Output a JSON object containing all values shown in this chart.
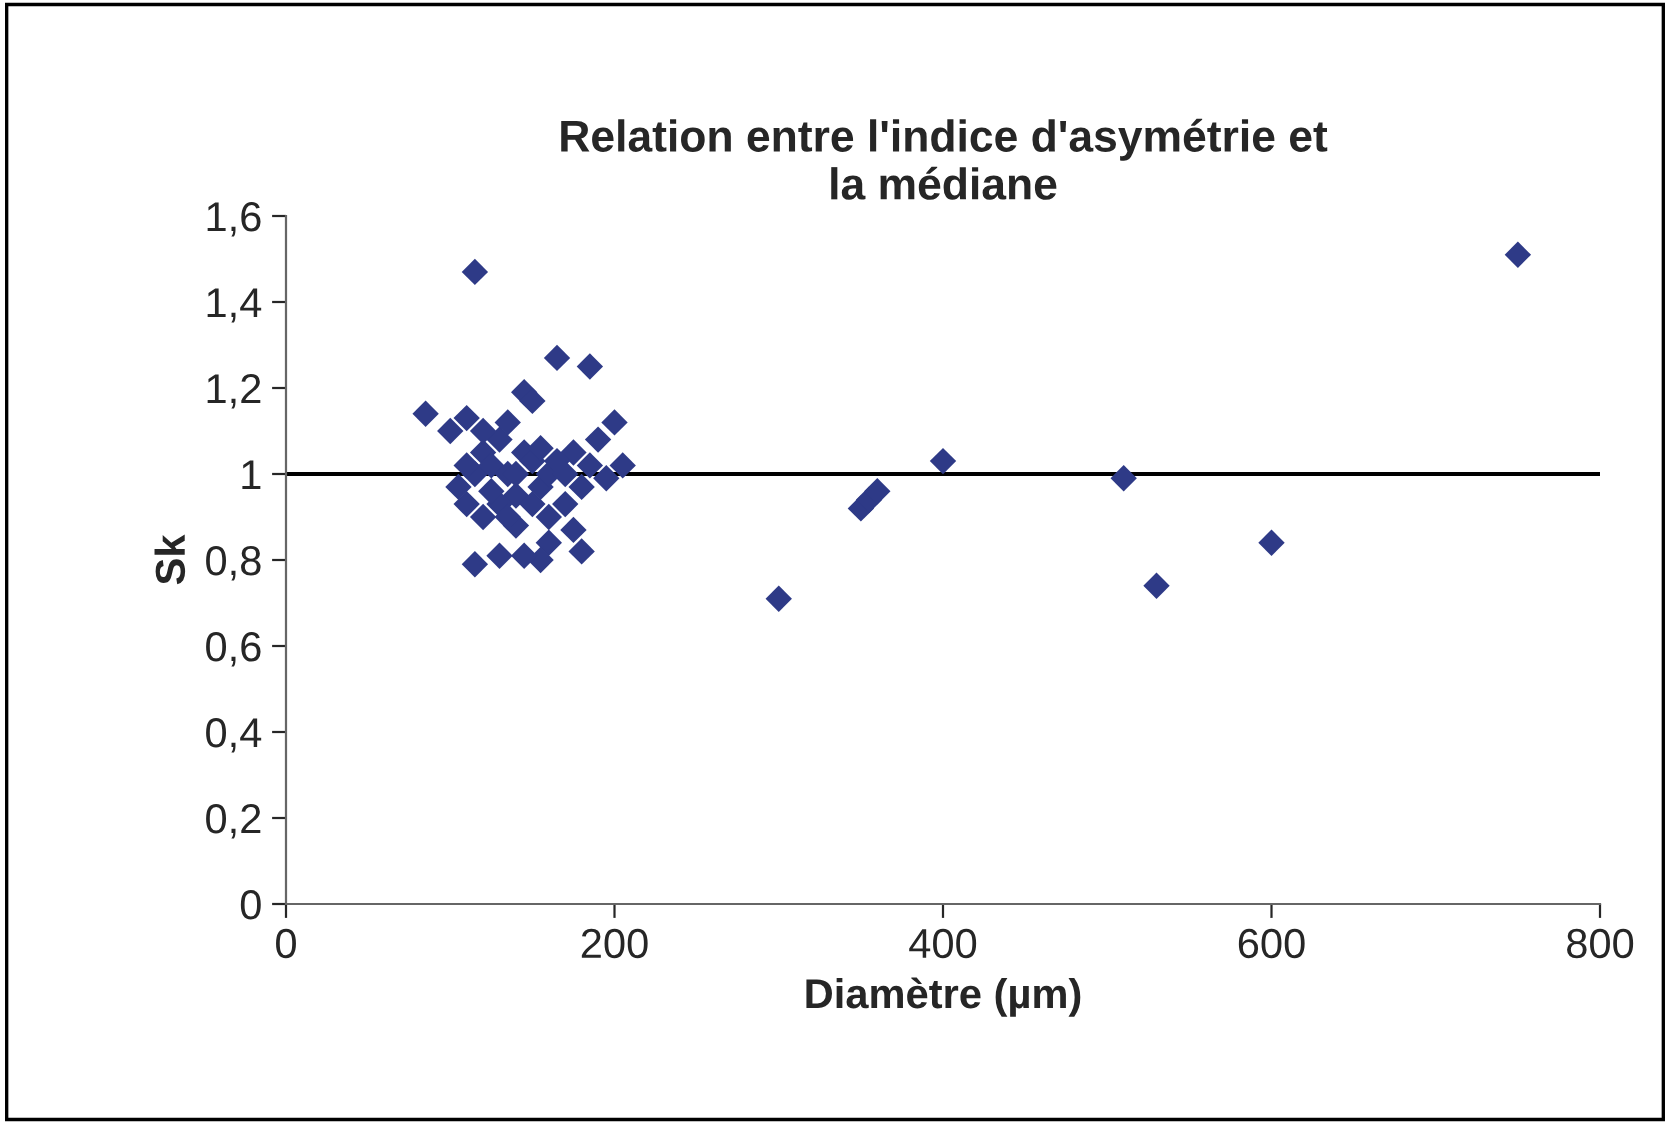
{
  "chart_data": {
    "type": "scatter",
    "title": "Relation entre l'indice d'asymétrie et\nla médiane",
    "xlabel": "Diamètre (µm)",
    "ylabel": "Sk",
    "x": [
      85,
      115,
      100,
      110,
      120,
      130,
      135,
      145,
      150,
      165,
      185,
      175,
      190,
      200,
      205,
      195,
      180,
      170,
      175,
      180,
      160,
      155,
      145,
      130,
      115,
      140,
      120,
      110,
      105,
      115,
      125,
      135,
      140,
      150,
      155,
      160,
      165,
      130,
      145,
      150,
      125,
      110,
      185,
      170,
      160,
      135,
      120,
      140,
      155,
      300,
      350,
      355,
      360,
      400,
      510,
      530,
      600,
      750
    ],
    "values": [
      1.14,
      1.47,
      1.1,
      1.13,
      1.05,
      1.08,
      1.12,
      1.19,
      1.17,
      1.27,
      1.25,
      1.05,
      1.08,
      1.12,
      1.02,
      0.99,
      0.97,
      0.93,
      0.87,
      0.82,
      0.84,
      0.8,
      0.81,
      0.81,
      0.79,
      0.88,
      0.9,
      0.93,
      0.97,
      1.0,
      1.02,
      1.0,
      0.95,
      0.93,
      0.97,
      1.0,
      1.03,
      0.93,
      1.05,
      1.03,
      0.96,
      1.02,
      1.02,
      1.0,
      0.9,
      0.9,
      1.1,
      1.0,
      1.06,
      0.71,
      0.92,
      0.94,
      0.96,
      1.03,
      0.99,
      0.74,
      0.84,
      1.51
    ],
    "color": "#2e3a87",
    "marker": "diamond",
    "xlim": [
      0,
      800
    ],
    "xticks": [
      0,
      200,
      400,
      600,
      800
    ],
    "ylim": [
      0,
      1.6
    ],
    "yticks": [
      {
        "value": 0,
        "label": "0"
      },
      {
        "value": 0.2,
        "label": "0,2"
      },
      {
        "value": 0.4,
        "label": "0,4"
      },
      {
        "value": 0.6,
        "label": "0,6"
      },
      {
        "value": 0.8,
        "label": "0,8"
      },
      {
        "value": 1,
        "label": "1"
      },
      {
        "value": 1.2,
        "label": "1,2"
      },
      {
        "value": 1.4,
        "label": "1,4"
      },
      {
        "value": 1.6,
        "label": "1,6"
      }
    ],
    "ref_lines": [
      {
        "axis": "y",
        "value": 1,
        "color": "#000000"
      }
    ],
    "grid": false,
    "legend": false
  }
}
